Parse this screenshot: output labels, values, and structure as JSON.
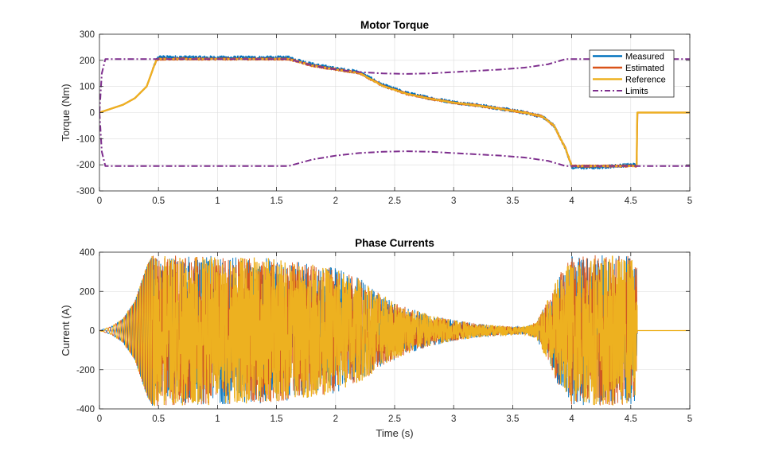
{
  "colors": {
    "measured": "#0072BD",
    "estimated": "#D95319",
    "reference": "#EDB120",
    "limits": "#7E2F8E",
    "grid": "#dcdcdc",
    "axis": "#262626"
  },
  "chart_data": [
    {
      "type": "line",
      "title": "Motor Torque",
      "xlabel": "",
      "ylabel": "Torque (Nm)",
      "xlim": [
        0,
        5
      ],
      "ylim": [
        -300,
        300
      ],
      "xticks": [
        0,
        0.5,
        1,
        1.5,
        2,
        2.5,
        3,
        3.5,
        4,
        4.5,
        5
      ],
      "xtick_labels": [
        "0",
        "0.5",
        "1",
        "1.5",
        "2",
        "2.5",
        "3",
        "3.5",
        "4",
        "4.5",
        "5"
      ],
      "yticks": [
        -300,
        -200,
        -100,
        0,
        100,
        200,
        300
      ],
      "ytick_labels": [
        "-300",
        "-200",
        "-100",
        "0",
        "100",
        "200",
        "300"
      ],
      "grid": true,
      "legend_position": "top-right",
      "legend": [
        "Measured",
        "Estimated",
        "Reference",
        "Limits"
      ],
      "series": [
        {
          "name": "Measured",
          "style": "solid",
          "noise": 7,
          "x": [
            0,
            0.1,
            0.2,
            0.3,
            0.4,
            0.48,
            0.5,
            1.0,
            1.6,
            1.8,
            2.0,
            2.2,
            2.4,
            2.6,
            2.8,
            3.0,
            3.2,
            3.4,
            3.6,
            3.75,
            3.85,
            3.95,
            4.0,
            4.2,
            4.5,
            4.55,
            4.555,
            5.0
          ],
          "y": [
            0,
            15,
            30,
            55,
            100,
            200,
            212,
            210,
            210,
            185,
            168,
            155,
            105,
            75,
            55,
            40,
            28,
            15,
            0,
            -15,
            -50,
            -140,
            -210,
            -210,
            -200,
            -200,
            0,
            0
          ]
        },
        {
          "name": "Estimated",
          "style": "solid",
          "noise": 3,
          "x": [
            0,
            0.1,
            0.2,
            0.3,
            0.4,
            0.48,
            0.5,
            1.0,
            1.6,
            1.8,
            2.0,
            2.2,
            2.4,
            2.6,
            2.8,
            3.0,
            3.2,
            3.4,
            3.6,
            3.75,
            3.85,
            3.95,
            4.0,
            4.2,
            4.5,
            4.55,
            4.555,
            5.0
          ],
          "y": [
            0,
            15,
            30,
            55,
            100,
            200,
            205,
            205,
            205,
            180,
            165,
            152,
            102,
            72,
            53,
            38,
            27,
            14,
            0,
            -15,
            -50,
            -140,
            -205,
            -205,
            -205,
            -205,
            0,
            0
          ]
        },
        {
          "name": "Reference",
          "style": "solid",
          "noise": 0,
          "x": [
            0,
            0.1,
            0.2,
            0.3,
            0.4,
            0.48,
            0.5,
            1.0,
            1.6,
            1.8,
            2.0,
            2.2,
            2.4,
            2.6,
            2.8,
            3.0,
            3.2,
            3.4,
            3.6,
            3.75,
            3.85,
            3.95,
            4.0,
            4.2,
            4.5,
            4.55,
            4.555,
            5.0
          ],
          "y": [
            0,
            15,
            30,
            55,
            100,
            200,
            205,
            205,
            205,
            180,
            165,
            152,
            102,
            72,
            53,
            38,
            27,
            14,
            0,
            -15,
            -50,
            -140,
            -205,
            -205,
            -205,
            -205,
            0,
            0
          ]
        },
        {
          "name": "Limits",
          "style": "dashdot",
          "noise": 0,
          "x": [
            0,
            0.02,
            0.05,
            1.6,
            1.8,
            2.0,
            2.2,
            2.4,
            2.6,
            2.8,
            3.0,
            3.2,
            3.4,
            3.6,
            3.8,
            3.95,
            4.0,
            5.0
          ],
          "y": [
            0,
            150,
            205,
            205,
            180,
            165,
            155,
            150,
            148,
            150,
            155,
            160,
            165,
            172,
            185,
            205,
            205,
            205
          ]
        },
        {
          "name": "Limits",
          "style": "dashdot",
          "noise": 0,
          "x": [
            0,
            0.02,
            0.05,
            1.6,
            1.8,
            2.0,
            2.2,
            2.4,
            2.6,
            2.8,
            3.0,
            3.2,
            3.4,
            3.6,
            3.8,
            3.95,
            4.0,
            5.0
          ],
          "y": [
            0,
            -150,
            -205,
            -205,
            -180,
            -165,
            -155,
            -150,
            -148,
            -150,
            -155,
            -160,
            -165,
            -172,
            -185,
            -205,
            -205,
            -205
          ]
        }
      ]
    },
    {
      "type": "line",
      "title": "Phase Currents",
      "xlabel": "Time (s)",
      "ylabel": "Current (A)",
      "xlim": [
        0,
        5
      ],
      "ylim": [
        -400,
        400
      ],
      "xticks": [
        0,
        0.5,
        1,
        1.5,
        2,
        2.5,
        3,
        3.5,
        4,
        4.5,
        5
      ],
      "xtick_labels": [
        "0",
        "0.5",
        "1",
        "1.5",
        "2",
        "2.5",
        "3",
        "3.5",
        "4",
        "4.5",
        "5"
      ],
      "yticks": [
        -400,
        -200,
        0,
        200,
        400
      ],
      "ytick_labels": [
        "-400",
        "-200",
        "0",
        "200",
        "400"
      ],
      "grid": true,
      "series": [
        {
          "kind": "envelope",
          "x": [
            0,
            0.1,
            0.2,
            0.3,
            0.4,
            0.45,
            0.5,
            1.0,
            1.5,
            2.0,
            2.2,
            2.4,
            2.6,
            2.8,
            3.0,
            3.2,
            3.4,
            3.6,
            3.7,
            3.8,
            3.9,
            4.0,
            4.2,
            4.5,
            4.55,
            4.555,
            5.0
          ],
          "y": [
            0,
            20,
            60,
            150,
            330,
            385,
            385,
            380,
            370,
            320,
            270,
            180,
            120,
            80,
            55,
            35,
            25,
            20,
            40,
            160,
            300,
            380,
            385,
            380,
            360,
            0,
            0
          ]
        }
      ]
    }
  ]
}
